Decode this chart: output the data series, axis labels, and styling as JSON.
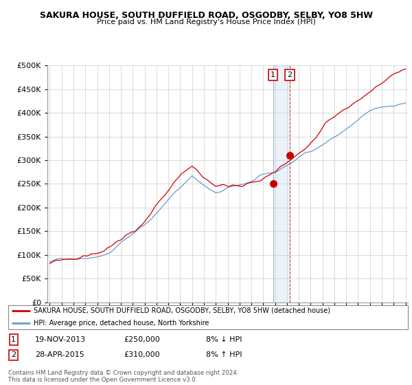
{
  "title": "SAKURA HOUSE, SOUTH DUFFIELD ROAD, OSGODBY, SELBY, YO8 5HW",
  "subtitle": "Price paid vs. HM Land Registry's House Price Index (HPI)",
  "legend_line1": "SAKURA HOUSE, SOUTH DUFFIELD ROAD, OSGODBY, SELBY, YO8 5HW (detached house)",
  "legend_line2": "HPI: Average price, detached house, North Yorkshire",
  "transaction1_date": "19-NOV-2013",
  "transaction1_price": "£250,000",
  "transaction1_hpi": "8% ↓ HPI",
  "transaction2_date": "28-APR-2015",
  "transaction2_price": "£310,000",
  "transaction2_hpi": "8% ↑ HPI",
  "footer": "Contains HM Land Registry data © Crown copyright and database right 2024.\nThis data is licensed under the Open Government Licence v3.0.",
  "red_color": "#cc0000",
  "blue_color": "#6699cc",
  "background_color": "#ffffff",
  "grid_color": "#cccccc",
  "ylim": [
    0,
    500000
  ],
  "yticks": [
    0,
    50000,
    100000,
    150000,
    200000,
    250000,
    300000,
    350000,
    400000,
    450000,
    500000
  ],
  "year_start": 1995,
  "year_end": 2025
}
